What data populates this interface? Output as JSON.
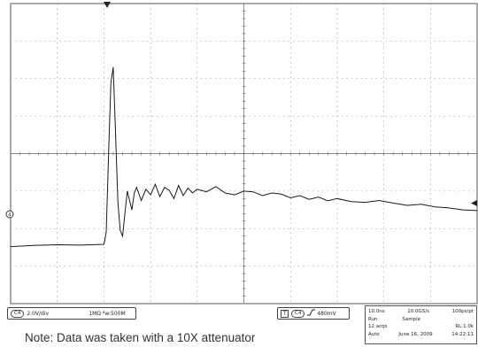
{
  "channel_readout": {
    "channel": "C4",
    "volts_per_div": "2.0V/div",
    "impedance_bandwidth": "1MΩ ᴮw:500M"
  },
  "trigger_readout": {
    "mode_icon": "trigger-icon",
    "channel": "C4",
    "slope_icon": "rising-edge-icon",
    "level": "480mV"
  },
  "acquisition": {
    "timebase": "10.0ns",
    "sample_rate": "10.0GS/s",
    "resolution": "100ps/pt",
    "run_state": "Run",
    "mode": "Sample",
    "acqs": "12 acqs",
    "record_length": "RL:1.0k",
    "trigger_mode": "Auto",
    "date": "June 16, 2009",
    "time": "14:22:11"
  },
  "note": "Note: Data was taken with a 10X attenuator",
  "colors": {
    "grid": "#8a8a8a",
    "trace": "#1a1a1a",
    "background": "#ffffff"
  },
  "chart_data": {
    "type": "line",
    "grid": true,
    "title": "",
    "xlabel": "",
    "ylabel": "",
    "divisions": {
      "x": 10,
      "y": 8
    },
    "series": [
      {
        "x": [
          0,
          0.5,
          1.0,
          1.5,
          2.0,
          2.05,
          2.1,
          2.15,
          2.2,
          2.25,
          2.3,
          2.35,
          2.4,
          2.45,
          2.5,
          2.55,
          2.6,
          2.65,
          2.7,
          2.8,
          2.9,
          3.0,
          3.1,
          3.2,
          3.3,
          3.4,
          3.5,
          3.6,
          3.7,
          3.8,
          3.9,
          4.0,
          4.2,
          4.4,
          4.6,
          4.8,
          5.0,
          5.2,
          5.4,
          5.6,
          5.8,
          6.0,
          6.2,
          6.4,
          6.6,
          6.8,
          7.0,
          7.3,
          7.6,
          7.9,
          8.2,
          8.5,
          8.8,
          9.1,
          9.4,
          9.7,
          10.0
        ],
        "y": [
          -2.48,
          -2.45,
          -2.43,
          -2.44,
          -2.42,
          -2.1,
          0.0,
          1.9,
          2.3,
          0.5,
          -1.3,
          -2.05,
          -2.2,
          -1.6,
          -1.0,
          -1.25,
          -1.5,
          -1.05,
          -0.9,
          -1.25,
          -0.95,
          -1.1,
          -0.82,
          -1.15,
          -0.9,
          -0.98,
          -1.2,
          -0.85,
          -1.12,
          -0.92,
          -1.05,
          -0.95,
          -1.02,
          -0.88,
          -1.05,
          -1.1,
          -1.0,
          -1.02,
          -1.12,
          -1.05,
          -1.08,
          -1.18,
          -1.12,
          -1.22,
          -1.16,
          -1.26,
          -1.2,
          -1.28,
          -1.3,
          -1.25,
          -1.32,
          -1.38,
          -1.35,
          -1.42,
          -1.45,
          -1.5,
          -1.52
        ]
      }
    ]
  }
}
